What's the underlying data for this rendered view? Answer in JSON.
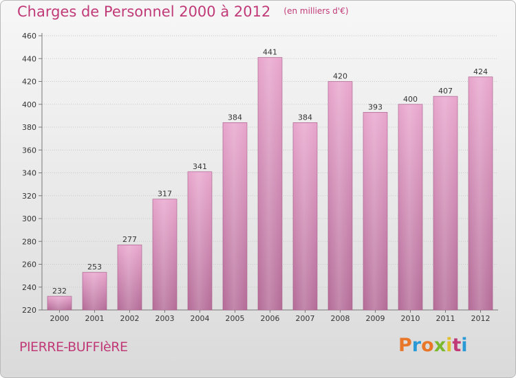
{
  "header": {
    "title": "Charges de Personnel 2000 à 2012",
    "subtitle": "(en milliers d'€)"
  },
  "footer": {
    "place": "PIERRE-BUFFIèRE",
    "logo": "Proxiti",
    "logo_colors": [
      "#e8772a",
      "#2a9ad6",
      "#e8772a",
      "#7ab92e",
      "#e0c12a",
      "#c13a78",
      "#2a9ad6"
    ]
  },
  "colors": {
    "accent": "#c13a78",
    "bar_top": "#e8a6cd",
    "bar_bottom": "#b56e99"
  },
  "chart_data": {
    "type": "bar",
    "categories": [
      "2000",
      "2001",
      "2002",
      "2003",
      "2004",
      "2005",
      "2006",
      "2007",
      "2008",
      "2009",
      "2010",
      "2011",
      "2012"
    ],
    "values": [
      232,
      253,
      277,
      317,
      341,
      384,
      441,
      384,
      420,
      393,
      400,
      407,
      424
    ],
    "title": "Charges de Personnel 2000 à 2012",
    "xlabel": "",
    "ylabel": "",
    "ylim": [
      220,
      460
    ],
    "yticks": [
      220,
      240,
      260,
      280,
      300,
      320,
      340,
      360,
      380,
      400,
      420,
      440,
      460
    ],
    "grid": true,
    "legend": "none"
  }
}
